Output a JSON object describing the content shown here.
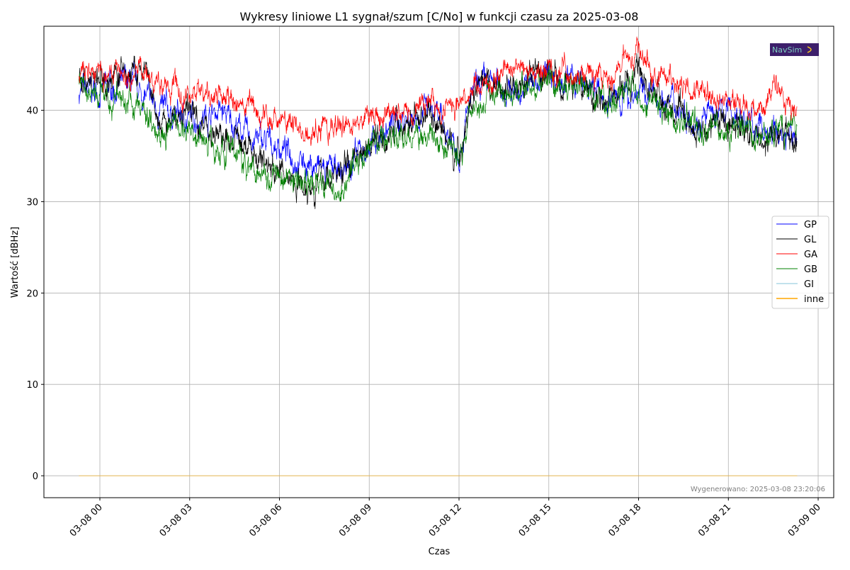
{
  "chart_data": {
    "type": "line",
    "title": "Wykresy liniowe L1 sygnał/szum [C/No] w funkcji czasu za 2025-03-08",
    "xlabel": "Czas",
    "ylabel": "Wartość [dBHz]",
    "x_unit": "hours since 2025-03-08 00:00",
    "xlim": [
      -1.87,
      24.52
    ],
    "ylim": [
      -2.4,
      49.2
    ],
    "grid": true,
    "x_ticks": [
      {
        "value": 0,
        "label": "03-08 00"
      },
      {
        "value": 3,
        "label": "03-08 03"
      },
      {
        "value": 6,
        "label": "03-08 06"
      },
      {
        "value": 9,
        "label": "03-08 09"
      },
      {
        "value": 12,
        "label": "03-08 12"
      },
      {
        "value": 15,
        "label": "03-08 15"
      },
      {
        "value": 18,
        "label": "03-08 18"
      },
      {
        "value": 21,
        "label": "03-08 21"
      },
      {
        "value": 24,
        "label": "03-09 00"
      }
    ],
    "y_ticks": [
      0,
      10,
      20,
      30,
      40
    ],
    "legend_position": "center-right",
    "series": [
      {
        "name": "GP",
        "color": "#0000ff",
        "noise": 1.4,
        "points": [
          [
            -0.7,
            42
          ],
          [
            0,
            42
          ],
          [
            1,
            43
          ],
          [
            2,
            40
          ],
          [
            3,
            39
          ],
          [
            4,
            40
          ],
          [
            5,
            37
          ],
          [
            6,
            36
          ],
          [
            7,
            34
          ],
          [
            8,
            33
          ],
          [
            9,
            36
          ],
          [
            10,
            39
          ],
          [
            11,
            40
          ],
          [
            12,
            36
          ],
          [
            12.5,
            42
          ],
          [
            13,
            43
          ],
          [
            14,
            42
          ],
          [
            15,
            44
          ],
          [
            16,
            43
          ],
          [
            17,
            41
          ],
          [
            18,
            42
          ],
          [
            19,
            41
          ],
          [
            20,
            39
          ],
          [
            21,
            40
          ],
          [
            22,
            38
          ],
          [
            23.3,
            37
          ]
        ]
      },
      {
        "name": "GL",
        "color": "#000000",
        "noise": 1.5,
        "points": [
          [
            -0.7,
            44
          ],
          [
            0,
            43
          ],
          [
            0.7,
            44
          ],
          [
            1.5,
            44
          ],
          [
            2,
            38
          ],
          [
            3,
            40
          ],
          [
            4,
            37
          ],
          [
            5,
            36
          ],
          [
            6,
            33
          ],
          [
            7,
            32
          ],
          [
            8,
            33
          ],
          [
            9,
            37
          ],
          [
            10,
            38
          ],
          [
            11,
            40
          ],
          [
            12,
            35
          ],
          [
            12.5,
            42
          ],
          [
            13,
            42
          ],
          [
            14,
            43
          ],
          [
            15,
            44
          ],
          [
            16,
            43
          ],
          [
            17,
            41
          ],
          [
            18,
            44
          ],
          [
            19,
            40
          ],
          [
            20,
            38
          ],
          [
            21,
            39
          ],
          [
            22,
            37
          ],
          [
            23.3,
            37
          ]
        ]
      },
      {
        "name": "GA",
        "color": "#ff0000",
        "noise": 1.2,
        "points": [
          [
            -0.7,
            44.5
          ],
          [
            0,
            44
          ],
          [
            1,
            44
          ],
          [
            1.5,
            45
          ],
          [
            2,
            42
          ],
          [
            3,
            42
          ],
          [
            4,
            41
          ],
          [
            5,
            40
          ],
          [
            6,
            39
          ],
          [
            7,
            37.5
          ],
          [
            8,
            38
          ],
          [
            9,
            39
          ],
          [
            10,
            40
          ],
          [
            11,
            41
          ],
          [
            12,
            40
          ],
          [
            12.5,
            43
          ],
          [
            13,
            43
          ],
          [
            14,
            45
          ],
          [
            15,
            44.5
          ],
          [
            16,
            44
          ],
          [
            17,
            44
          ],
          [
            18,
            46
          ],
          [
            19,
            43
          ],
          [
            20,
            42
          ],
          [
            21,
            41
          ],
          [
            22,
            40.5
          ],
          [
            22.6,
            42
          ],
          [
            23.3,
            40
          ]
        ]
      },
      {
        "name": "GB",
        "color": "#008000",
        "noise": 1.4,
        "points": [
          [
            -0.7,
            42.5
          ],
          [
            0,
            41.5
          ],
          [
            1,
            41
          ],
          [
            2,
            38
          ],
          [
            3,
            38
          ],
          [
            4,
            36
          ],
          [
            5,
            34
          ],
          [
            6,
            33
          ],
          [
            7,
            32
          ],
          [
            8,
            31.5
          ],
          [
            9,
            36
          ],
          [
            10,
            37
          ],
          [
            11,
            37
          ],
          [
            12,
            35
          ],
          [
            12.5,
            41
          ],
          [
            13,
            42
          ],
          [
            14,
            42
          ],
          [
            15,
            43
          ],
          [
            16,
            42
          ],
          [
            17,
            41
          ],
          [
            18,
            42
          ],
          [
            19,
            39
          ],
          [
            20,
            39
          ],
          [
            21,
            38
          ],
          [
            22,
            37
          ],
          [
            23.3,
            38
          ]
        ]
      },
      {
        "name": "GI",
        "color": "#add8e6",
        "noise": 0,
        "points": [
          [
            -0.7,
            0
          ],
          [
            23.3,
            0
          ]
        ]
      },
      {
        "name": "inne",
        "color": "#ffa500",
        "noise": 0,
        "points": [
          [
            -0.7,
            0
          ],
          [
            23.3,
            0
          ]
        ]
      }
    ],
    "annotation": "Wygenerowano: 2025-03-08 23:20:06",
    "logo_text": "NavSim"
  }
}
